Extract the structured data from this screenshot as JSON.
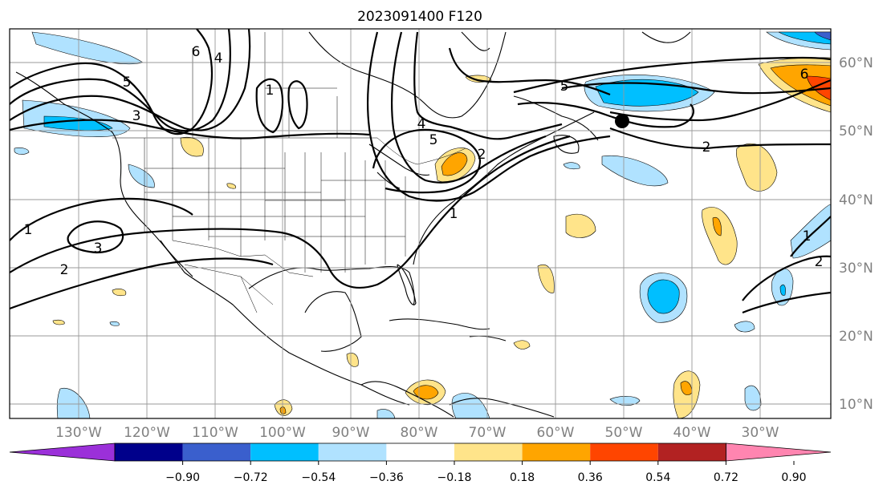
{
  "title": "2023091400 F120",
  "lon_labels": [
    "130°W",
    "120°W",
    "110°W",
    "100°W",
    "90°W",
    "80°W",
    "70°W",
    "60°W",
    "50°W",
    "40°W",
    "30°W"
  ],
  "lat_labels": [
    "60°N",
    "50°N",
    "40°N",
    "30°N",
    "20°N",
    "10°N"
  ],
  "colorbar": {
    "ticks": [
      "−0.90",
      "−0.72",
      "−0.54",
      "−0.36",
      "−0.18",
      "0.18",
      "0.36",
      "0.54",
      "0.72",
      "0.90"
    ],
    "colors": [
      "#9b30d9",
      "#00008b",
      "#3a5fcd",
      "#00bfff",
      "#b0e2ff",
      "#ffffff",
      "#ffe48a",
      "#ffa500",
      "#ff4500",
      "#b22222",
      "#ff85b0"
    ]
  },
  "contour_labels": [
    "6",
    "4",
    "5",
    "3",
    "1",
    "4",
    "5",
    "2",
    "6",
    "1",
    "3",
    "2",
    "5",
    "1",
    "2",
    "1",
    "2"
  ],
  "colors": {
    "light_blue": "#b0e2ff",
    "blue": "#00bfff",
    "mid_blue": "#3a5fcd",
    "light_yellow": "#ffe48a",
    "orange": "#ffa500",
    "red_orange": "#ff4500"
  },
  "marker": "storm-center-dot"
}
